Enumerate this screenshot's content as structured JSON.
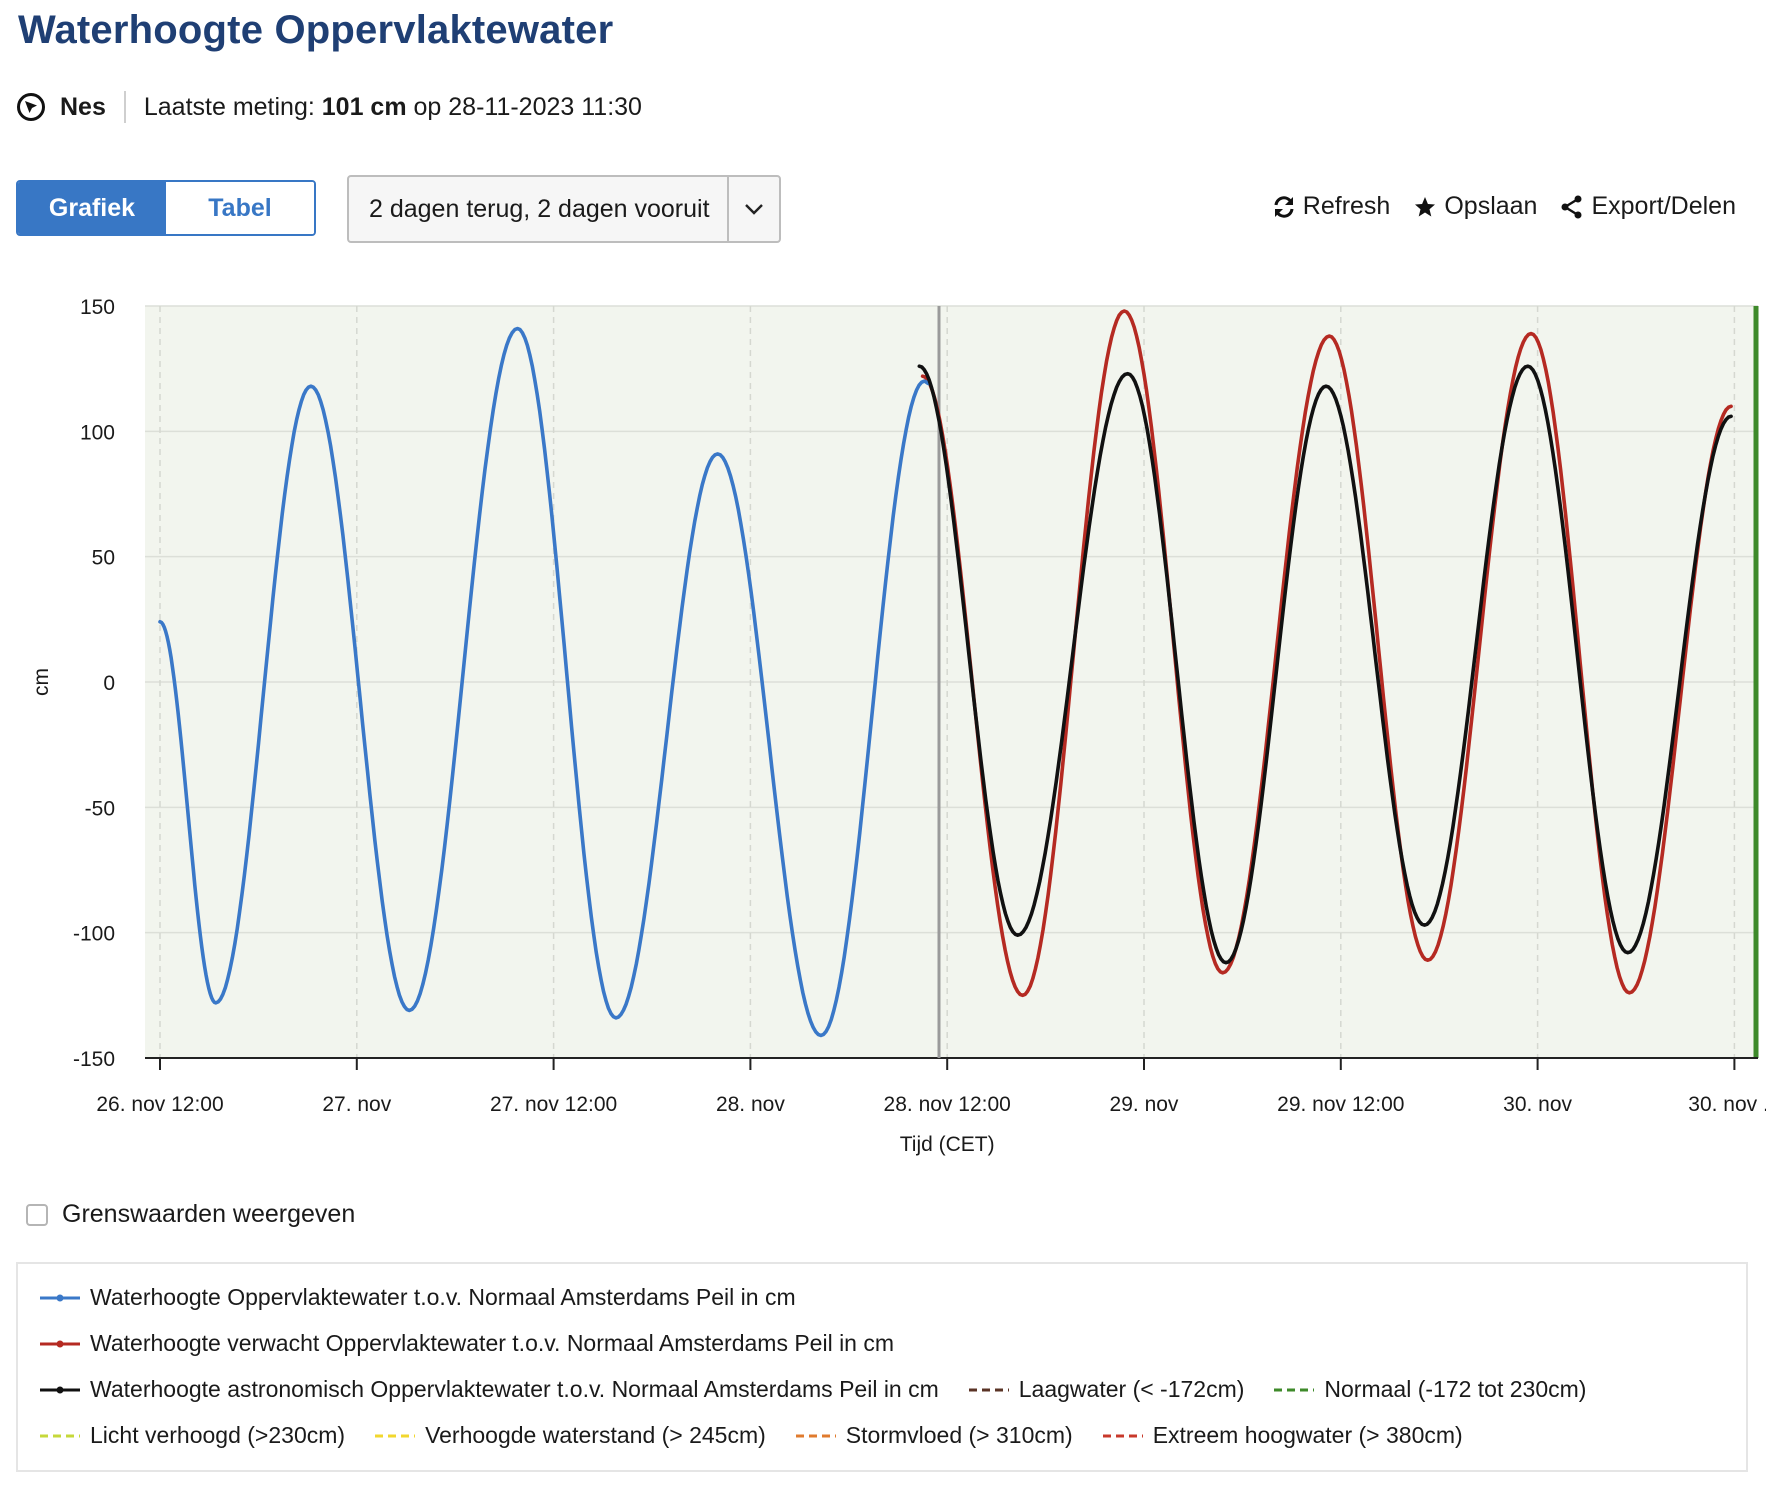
{
  "title": "Waterhoogte Oppervlaktewater",
  "info": {
    "location": "Nes",
    "last_label": "Laatste meting:",
    "last_value": "101 cm",
    "last_on": "op 28-11-2023 11:30"
  },
  "view_toggle": {
    "graph_label": "Grafiek",
    "table_label": "Tabel"
  },
  "period_select": {
    "value": "2 dagen terug, 2 dagen vooruit"
  },
  "actions": {
    "refresh": "Refresh",
    "save": "Opslaan",
    "export": "Export/Delen"
  },
  "threshold_toggle": {
    "label": "Grenswaarden weergeven",
    "checked": false
  },
  "colors": {
    "measured": "#3a78c8",
    "expected": "#b52a22",
    "astronomical": "#111111",
    "plot_bg": "#f2f5ee",
    "now_line": "#9a9a9a",
    "green_edge": "#3e8a2a"
  },
  "chart_data": {
    "type": "line",
    "title": "",
    "xlabel": "Tijd (CET)",
    "ylabel": "cm",
    "ylim": [
      -150,
      150
    ],
    "y_ticks": [
      150,
      100,
      50,
      0,
      -50,
      -100,
      -150
    ],
    "x_range_hours": [
      -1,
      95
    ],
    "x_ticks": [
      {
        "h": 0,
        "label": "26. nov 12:00"
      },
      {
        "h": 12,
        "label": "27. nov"
      },
      {
        "h": 24,
        "label": "27. nov 12:00"
      },
      {
        "h": 36,
        "label": "28. nov"
      },
      {
        "h": 48,
        "label": "28. nov 12:00"
      },
      {
        "h": 60,
        "label": "29. nov"
      },
      {
        "h": 72,
        "label": "29. nov 12:00"
      },
      {
        "h": 84,
        "label": "30. nov"
      },
      {
        "h": 96,
        "label": "30. nov ..."
      }
    ],
    "grid": true,
    "now_marker_hour": 47.5,
    "series": [
      {
        "name": "Waterhoogte Oppervlaktewater t.o.v. Normaal Amsterdams Peil in cm",
        "key": "measured",
        "points": [
          [
            0,
            24
          ],
          [
            3.4,
            -128
          ],
          [
            9.2,
            118
          ],
          [
            15.2,
            -131
          ],
          [
            21.8,
            141
          ],
          [
            27.8,
            -134
          ],
          [
            34,
            91
          ],
          [
            40.3,
            -141
          ],
          [
            46.6,
            120
          ],
          [
            46.9,
            119
          ]
        ]
      },
      {
        "name": "Waterhoogte verwacht Oppervlaktewater t.o.v. Normaal Amsterdams Peil in cm",
        "key": "expected",
        "points": [
          [
            46.5,
            122
          ],
          [
            52.6,
            -125
          ],
          [
            58.8,
            148
          ],
          [
            64.8,
            -116
          ],
          [
            71.3,
            138
          ],
          [
            77.3,
            -111
          ],
          [
            83.6,
            139
          ],
          [
            89.6,
            -124
          ],
          [
            95.8,
            110
          ]
        ]
      },
      {
        "name": "Waterhoogte astronomisch Oppervlaktewater t.o.v. Normaal Amsterdams Peil in cm",
        "key": "astronomical",
        "points": [
          [
            46.3,
            126
          ],
          [
            52.3,
            -101
          ],
          [
            59.0,
            123
          ],
          [
            65.0,
            -112
          ],
          [
            71.1,
            118
          ],
          [
            77.1,
            -97
          ],
          [
            83.4,
            126
          ],
          [
            89.5,
            -108
          ],
          [
            95.8,
            106
          ]
        ]
      }
    ],
    "legend": [
      {
        "label": "Waterhoogte Oppervlaktewater t.o.v. Normaal Amsterdams Peil in cm",
        "color": "#3a78c8",
        "style": "solid"
      },
      {
        "label": "Waterhoogte verwacht Oppervlaktewater t.o.v. Normaal Amsterdams Peil in cm",
        "color": "#b52a22",
        "style": "solid"
      },
      {
        "label": "Waterhoogte astronomisch Oppervlaktewater t.o.v. Normaal Amsterdams Peil in cm",
        "color": "#111111",
        "style": "solid"
      },
      {
        "label": "Laagwater (< -172cm)",
        "color": "#5a3325",
        "style": "dashed"
      },
      {
        "label": "Normaal (-172 tot 230cm)",
        "color": "#3e8a2a",
        "style": "dashed"
      },
      {
        "label": "Licht verhoogd (>230cm)",
        "color": "#c6d83a",
        "style": "dashed"
      },
      {
        "label": "Verhoogde waterstand (> 245cm)",
        "color": "#f2d72e",
        "style": "dashed"
      },
      {
        "label": "Stormvloed (> 310cm)",
        "color": "#e07b2e",
        "style": "dashed"
      },
      {
        "label": "Extreem hoogwater (> 380cm)",
        "color": "#c8392b",
        "style": "dashed"
      }
    ]
  }
}
